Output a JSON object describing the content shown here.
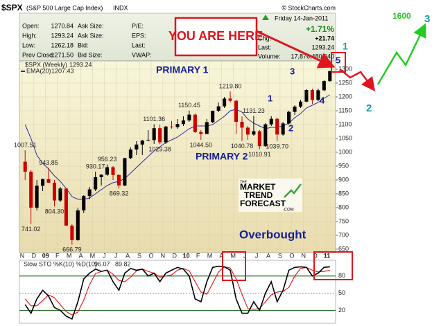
{
  "chart_data": {
    "type": "candlestick",
    "title": "$SPX",
    "subtitle": "(S&P 500 Large Cap Index)",
    "exchange": "INDX",
    "source": "© StockCharts.com",
    "quote_left": [
      {
        "label": "Open:",
        "value": "1270.84"
      },
      {
        "label": "High:",
        "value": "1293.24"
      },
      {
        "label": "Low:",
        "value": "1262.18"
      },
      {
        "label": "Prev Close:",
        "value": "1271.50"
      }
    ],
    "quote_mid": [
      "Ask Size:",
      "Ask Size:",
      "Bid:",
      "Bid Size:"
    ],
    "quote_mid2": [
      "P/E:",
      "EPS:",
      "Last:",
      "VWAP:"
    ],
    "quote_right": {
      "date": "Friday   14-Jan-2011",
      "change_pct": "+1.71%",
      "rows": [
        {
          "label": "Chg:",
          "value": "+21.74"
        },
        {
          "label": "Last:",
          "value": "1293.24"
        },
        {
          "label": "Volume:",
          "value": "17,876,480,040"
        }
      ]
    },
    "price_name": "$SPX (Weekly)",
    "up_color": "#000000",
    "down_color": "#cc0000",
    "ohlc": [
      [
        966,
        1007.51,
        900,
        930
      ],
      [
        930,
        935,
        741.02,
        800
      ],
      [
        800,
        900,
        790,
        879
      ],
      [
        879,
        905,
        860,
        903
      ],
      [
        903,
        943.85,
        890,
        890
      ],
      [
        890,
        900,
        804.3,
        826
      ],
      [
        826,
        875,
        820,
        869
      ],
      [
        869,
        870,
        735,
        735
      ],
      [
        735,
        740,
        666.79,
        683
      ],
      [
        683,
        800,
        680,
        790
      ],
      [
        790,
        845,
        780,
        842
      ],
      [
        842,
        875,
        830,
        866
      ],
      [
        866,
        930.17,
        860,
        910
      ],
      [
        910,
        920,
        880,
        919
      ],
      [
        919,
        956.23,
        915,
        946
      ],
      [
        946,
        950,
        900,
        918
      ],
      [
        918,
        920,
        869.32,
        880
      ],
      [
        880,
        980,
        878,
        979
      ],
      [
        979,
        1018,
        975,
        1010
      ],
      [
        1010,
        1040,
        990,
        1028
      ],
      [
        1028,
        1045,
        990,
        1042
      ],
      [
        1042,
        1080,
        1040,
        1044
      ],
      [
        1044,
        1101.36,
        1030,
        1087
      ],
      [
        1087,
        1100,
        1029.38,
        1036
      ],
      [
        1036,
        1095,
        1030,
        1093
      ],
      [
        1093,
        1113,
        1085,
        1091
      ],
      [
        1091,
        1120,
        1085,
        1102
      ],
      [
        1102,
        1130,
        1095,
        1115
      ],
      [
        1115,
        1150.45,
        1110,
        1136
      ],
      [
        1136,
        1140,
        1070,
        1073
      ],
      [
        1073,
        1080,
        1044.5,
        1066
      ],
      [
        1066,
        1120,
        1065,
        1109
      ],
      [
        1109,
        1150,
        1105,
        1150
      ],
      [
        1150,
        1180,
        1145,
        1166
      ],
      [
        1166,
        1200,
        1160,
        1194
      ],
      [
        1194,
        1219.8,
        1180,
        1186
      ],
      [
        1186,
        1190,
        1065,
        1110
      ],
      [
        1110,
        1130,
        1040.78,
        1089
      ],
      [
        1089,
        1095,
        1045,
        1064
      ],
      [
        1064,
        1131.23,
        1060,
        1076
      ],
      [
        1076,
        1080,
        1010.91,
        1022
      ],
      [
        1022,
        1105,
        1020,
        1101
      ],
      [
        1101,
        1130,
        1095,
        1121
      ],
      [
        1121,
        1125,
        1039.7,
        1064
      ],
      [
        1064,
        1110,
        1060,
        1104
      ],
      [
        1104,
        1150,
        1100,
        1146
      ],
      [
        1146,
        1170,
        1135,
        1165
      ],
      [
        1165,
        1190,
        1160,
        1183
      ],
      [
        1183,
        1228,
        1180,
        1225
      ],
      [
        1225,
        1230,
        1175,
        1189
      ],
      [
        1189,
        1230,
        1185,
        1224
      ],
      [
        1224,
        1260,
        1220,
        1257
      ],
      [
        1257,
        1293.24,
        1255,
        1293.24
      ]
    ],
    "ema": {
      "name": "EMA(20)",
      "color": "#2a2aa0",
      "values": [
        1100,
        1050,
        990,
        960,
        940,
        915,
        895,
        870,
        840,
        830,
        830,
        835,
        850,
        865,
        880,
        890,
        895,
        905,
        925,
        945,
        965,
        985,
        1005,
        1020,
        1035,
        1045,
        1055,
        1070,
        1085,
        1095,
        1095,
        1095,
        1100,
        1115,
        1130,
        1150,
        1155,
        1145,
        1120,
        1105,
        1095,
        1085,
        1090,
        1090,
        1095,
        1105,
        1125,
        1140,
        1160,
        1170,
        1180,
        1195,
        1207.43
      ]
    },
    "categories": [
      "N",
      "D",
      "09",
      "F",
      "M",
      "A",
      "M",
      "J",
      "J",
      "A",
      "S",
      "O",
      "N",
      "D",
      "10",
      "F",
      "M",
      "A",
      "M",
      "J",
      "J",
      "A",
      "S",
      "O",
      "N",
      "D",
      "11"
    ],
    "ylim": [
      637.5,
      1330
    ],
    "yticks": [
      650,
      700,
      750,
      800,
      850,
      900,
      950,
      1000,
      1050,
      1100,
      1150,
      1200,
      1250,
      1300
    ],
    "grid": true,
    "price_labels": [
      {
        "value": 1007.51,
        "label": "1007.51"
      },
      {
        "value": 943.85,
        "label": "943.85"
      },
      {
        "value": 930.17,
        "label": "930.17"
      },
      {
        "value": 956.23,
        "label": "956.23"
      },
      {
        "value": 804.3,
        "label": "804.30"
      },
      {
        "value": 741.02,
        "label": "741.02"
      },
      {
        "value": 869.32,
        "label": "869.32"
      },
      {
        "value": 666.79,
        "label": "666.79"
      },
      {
        "value": 1101.36,
        "label": "1101.36"
      },
      {
        "value": 1029.38,
        "label": "1029.38"
      },
      {
        "value": 1150.45,
        "label": "1150.45"
      },
      {
        "value": 1044.5,
        "label": "1044.50"
      },
      {
        "value": 1219.8,
        "label": "1219.80"
      },
      {
        "value": 1131.23,
        "label": "1131.23"
      },
      {
        "value": 1040.78,
        "label": "1040.78"
      },
      {
        "value": 1010.91,
        "label": "1010.91"
      },
      {
        "value": 1039.7,
        "label": "1039.70"
      }
    ],
    "annotations": {
      "here": "YOU ARE HERE",
      "primary1": "PRIMARY 1",
      "primary2": "PRIMARY 2",
      "overbought": "Overbought",
      "waves": [
        "1",
        "2",
        "3",
        "4",
        "5"
      ],
      "projection": [
        "1",
        "2",
        "3",
        "1600"
      ],
      "logo": [
        "THE",
        "MARKET",
        "TREND",
        "FORECAST",
        ".COM"
      ]
    },
    "oscillator": {
      "title": "Slow STO %K(10) %D(10)",
      "ylim": [
        0,
        105
      ],
      "yticks": [
        20,
        50,
        80
      ],
      "k": {
        "color": "#000000",
        "values": [
          30,
          15,
          40,
          55,
          45,
          25,
          20,
          10,
          5,
          35,
          75,
          85,
          92,
          88,
          90,
          70,
          55,
          85,
          93,
          90,
          92,
          80,
          85,
          70,
          85,
          90,
          95,
          92,
          80,
          40,
          35,
          70,
          95,
          97,
          96,
          90,
          40,
          15,
          15,
          35,
          20,
          50,
          70,
          35,
          55,
          90,
          95,
          96,
          95,
          80,
          85,
          95,
          96.07
        ]
      },
      "d": {
        "color": "#dd1111",
        "values": [
          40,
          28,
          28,
          37,
          47,
          42,
          30,
          18,
          12,
          17,
          38,
          65,
          84,
          88,
          90,
          83,
          72,
          70,
          78,
          89,
          92,
          88,
          85,
          78,
          80,
          82,
          90,
          93,
          89,
          70,
          52,
          48,
          67,
          87,
          96,
          94,
          75,
          48,
          23,
          22,
          23,
          35,
          47,
          52,
          53,
          60,
          80,
          93,
          95,
          90,
          87,
          88,
          89.82
        ]
      }
    }
  }
}
